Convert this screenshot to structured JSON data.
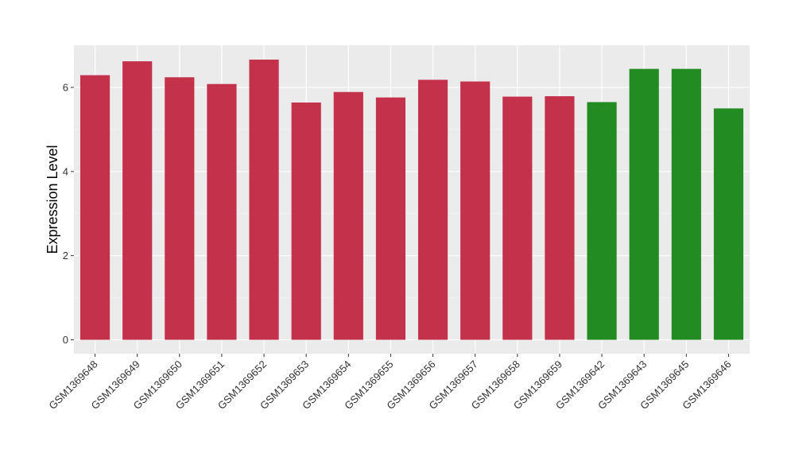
{
  "chart_data": {
    "type": "bar",
    "categories": [
      "GSM1369648",
      "GSM1369649",
      "GSM1369650",
      "GSM1369651",
      "GSM1369652",
      "GSM1369653",
      "GSM1369654",
      "GSM1369655",
      "GSM1369656",
      "GSM1369657",
      "GSM1369658",
      "GSM1369659",
      "GSM1369642",
      "GSM1369643",
      "GSM1369645",
      "GSM1369646"
    ],
    "values": [
      6.29,
      6.62,
      6.24,
      6.08,
      6.66,
      5.64,
      5.89,
      5.76,
      6.18,
      6.14,
      5.78,
      5.79,
      5.65,
      6.44,
      6.44,
      5.5
    ],
    "bar_colors": [
      "#c4314b",
      "#c4314b",
      "#c4314b",
      "#c4314b",
      "#c4314b",
      "#c4314b",
      "#c4314b",
      "#c4314b",
      "#c4314b",
      "#c4314b",
      "#c4314b",
      "#c4314b",
      "#228b22",
      "#228b22",
      "#228b22",
      "#228b22"
    ],
    "title": "",
    "xlabel": "",
    "ylabel": "Expression Level",
    "ylim": [
      -0.33,
      7.0
    ],
    "yticks": [
      0,
      2,
      4,
      6
    ],
    "grid": true,
    "background": "#ebebeb"
  }
}
